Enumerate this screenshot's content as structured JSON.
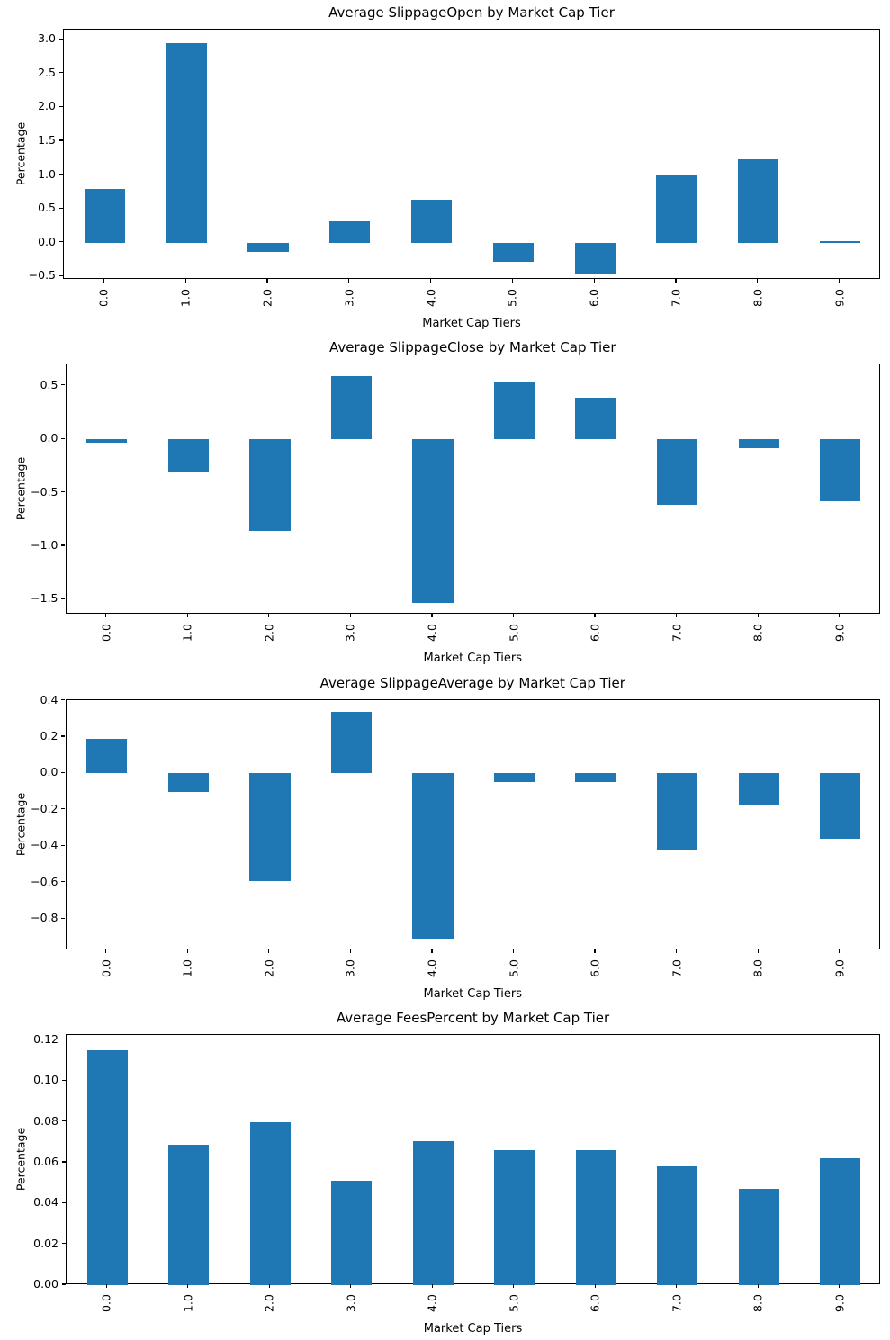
{
  "figure": {
    "background": "#ffffff",
    "bar_color": "#1f77b4",
    "spine_color": "#000000",
    "text_color": "#000000"
  },
  "chart_data": [
    {
      "type": "bar",
      "title": "Average SlippageOpen by Market Cap Tier",
      "xlabel": "Market Cap Tiers",
      "ylabel": "Percentage",
      "categories": [
        "0.0",
        "1.0",
        "2.0",
        "3.0",
        "4.0",
        "5.0",
        "6.0",
        "7.0",
        "8.0",
        "9.0"
      ],
      "values": [
        0.8,
        2.95,
        -0.14,
        0.31,
        0.64,
        -0.29,
        -0.47,
        0.99,
        1.24,
        0.02
      ],
      "ylim": [
        -0.55,
        3.15
      ],
      "ytick_values": [
        3.0,
        2.5,
        2.0,
        1.5,
        1.0,
        0.5,
        0.0,
        -0.5
      ],
      "ytick_labels": [
        "3.0",
        "2.5",
        "2.0",
        "1.5",
        "1.0",
        "0.5",
        "0.0",
        "−0.5"
      ],
      "grid": false,
      "legend": "none",
      "bar_color": "#1f77b4"
    },
    {
      "type": "bar",
      "title": "Average SlippageClose by Market Cap Tier",
      "xlabel": "Market Cap Tiers",
      "ylabel": "Percentage",
      "categories": [
        "0.0",
        "1.0",
        "2.0",
        "3.0",
        "4.0",
        "5.0",
        "6.0",
        "7.0",
        "8.0",
        "9.0"
      ],
      "values": [
        -0.03,
        -0.31,
        -0.86,
        0.59,
        -1.53,
        0.54,
        0.39,
        -0.61,
        -0.08,
        -0.58
      ],
      "ylim": [
        -1.64,
        0.7
      ],
      "ytick_values": [
        0.5,
        0.0,
        -0.5,
        -1.0,
        -1.5
      ],
      "ytick_labels": [
        "0.5",
        "0.0",
        "−0.5",
        "−1.0",
        "−1.5"
      ],
      "grid": false,
      "legend": "none",
      "bar_color": "#1f77b4"
    },
    {
      "type": "bar",
      "title": "Average SlippageAverage by Market Cap Tier",
      "xlabel": "Market Cap Tiers",
      "ylabel": "Percentage",
      "categories": [
        "0.0",
        "1.0",
        "2.0",
        "3.0",
        "4.0",
        "5.0",
        "6.0",
        "7.0",
        "8.0",
        "9.0"
      ],
      "values": [
        0.19,
        -0.1,
        -0.59,
        0.34,
        -0.91,
        -0.05,
        -0.05,
        -0.42,
        -0.17,
        -0.36
      ],
      "ylim": [
        -0.9725,
        0.4025
      ],
      "ytick_values": [
        0.4,
        0.2,
        0.0,
        -0.2,
        -0.4,
        -0.6,
        -0.8
      ],
      "ytick_labels": [
        "0.4",
        "0.2",
        "0.0",
        "−0.2",
        "−0.4",
        "−0.6",
        "−0.8"
      ],
      "grid": false,
      "legend": "none",
      "bar_color": "#1f77b4"
    },
    {
      "type": "bar",
      "title": "Average FeesPercent by Market Cap Tier",
      "xlabel": "Market Cap Tiers",
      "ylabel": "Percentage",
      "categories": [
        "0.0",
        "1.0",
        "2.0",
        "3.0",
        "4.0",
        "5.0",
        "6.0",
        "7.0",
        "8.0",
        "9.0"
      ],
      "values": [
        0.115,
        0.069,
        0.08,
        0.051,
        0.0705,
        0.066,
        0.066,
        0.058,
        0.047,
        0.062
      ],
      "ylim": [
        0.0,
        0.1226
      ],
      "ytick_values": [
        0.12,
        0.1,
        0.08,
        0.06,
        0.04,
        0.02,
        0.0
      ],
      "ytick_labels": [
        "0.12",
        "0.10",
        "0.08",
        "0.06",
        "0.04",
        "0.02",
        "0.00"
      ],
      "grid": false,
      "legend": "none",
      "bar_color": "#1f77b4"
    }
  ],
  "layout_note": "4 vertically stacked matplotlib-style bar subplots, x tick labels rotated 90°"
}
